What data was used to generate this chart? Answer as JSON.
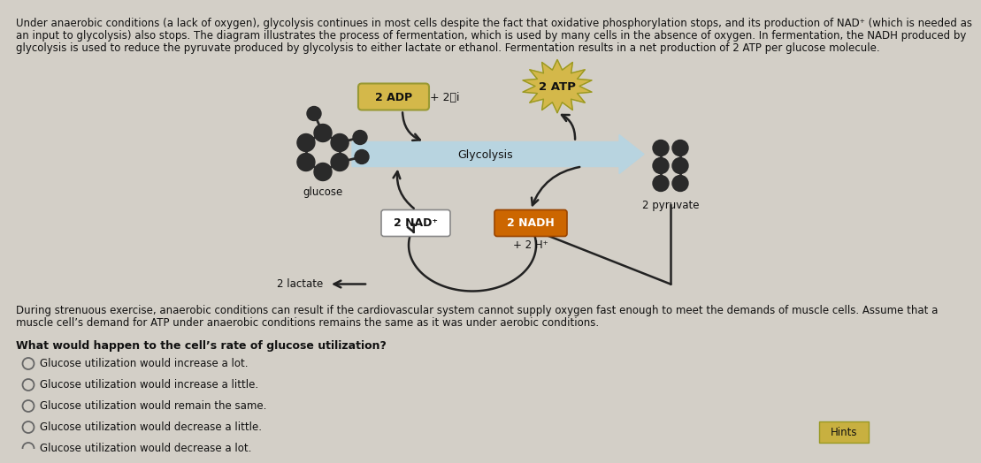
{
  "bg_color": "#d3cfc7",
  "paragraph1_line1": "Under anaerobic conditions (a lack of oxygen), glycolysis continues in most cells despite the fact that oxidative phosphorylation stops, and its production of NAD⁺ (which is needed as",
  "paragraph1_line2": "an input to glycolysis) also stops. The diagram illustrates the process of fermentation, which is used by many cells in the absence of oxygen. In fermentation, the NADH produced by",
  "paragraph1_line3": "glycolysis is used to reduce the pyruvate produced by glycolysis to either lactate or ethanol. Fermentation results in a net production of 2 ATP per glucose molecule.",
  "paragraph2_line1": "During strenuous exercise, anaerobic conditions can result if the cardiovascular system cannot supply oxygen fast enough to meet the demands of muscle cells. Assume that a",
  "paragraph2_line2": "muscle cell’s demand for ATP under anaerobic conditions remains the same as it was under aerobic conditions.",
  "question": "What would happen to the cell’s rate of glucose utilization?",
  "options": [
    "Glucose utilization would increase a lot.",
    "Glucose utilization would increase a little.",
    "Glucose utilization would remain the same.",
    "Glucose utilization would decrease a little.",
    "Glucose utilization would decrease a lot."
  ],
  "hints_label": "Hints",
  "adp_label": "2 ADP",
  "pi_label": "+ 2Ⓟi",
  "atp_label": "2 ATP",
  "nad_label": "2 NAD⁺",
  "nadh_label": "2 NADH",
  "h_label": "+ 2 H⁺",
  "glucose_label": "glucose",
  "pyruvate_label": "2 pyruvate",
  "lactate_label": "2 lactate",
  "adp_fill": "#d4b84a",
  "adp_edge": "#999933",
  "atp_fill": "#d4b84a",
  "atp_edge": "#999922",
  "nad_fill": "#ffffff",
  "nad_edge": "#888888",
  "nadh_fill": "#cc6600",
  "nadh_edge": "#994400",
  "glycolysis_fill": "#b8d4e0",
  "glycolysis_edge": "#aaccdd",
  "molecule_color": "#2a2a2a",
  "arrow_color": "#222222",
  "hints_fill": "#c8b040",
  "hints_edge": "#999922",
  "text_color": "#111111"
}
